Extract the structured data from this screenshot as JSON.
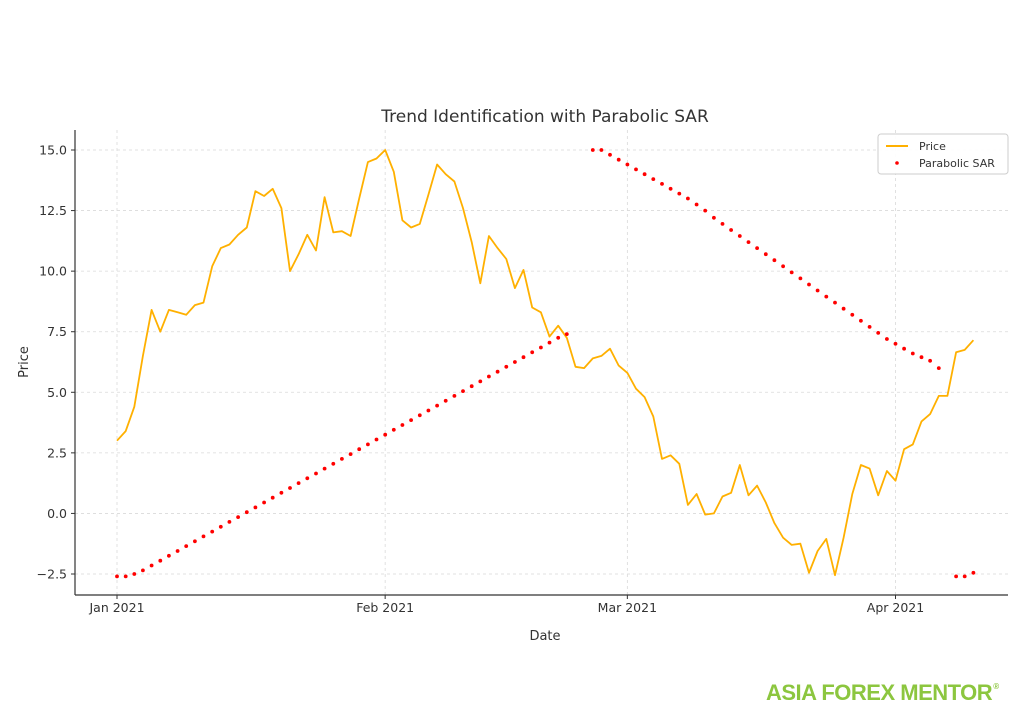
{
  "chart_data": {
    "type": "line",
    "title": "Trend Identification with Parabolic SAR",
    "xlabel": "Date",
    "ylabel": "Price",
    "ylim": [
      -3.4,
      15.8
    ],
    "grid": true,
    "legend_position": "upper right",
    "x_ticks": [
      "Jan 2021",
      "Feb 2021",
      "Mar 2021",
      "Apr 2021"
    ],
    "y_ticks": [
      "−2.5",
      "0.0",
      "2.5",
      "5.0",
      "7.5",
      "10.0",
      "12.5",
      "15.0"
    ],
    "y_tick_values": [
      -2.5,
      0,
      2.5,
      5,
      7.5,
      10,
      12.5,
      15
    ],
    "x_start": "2021-01-01",
    "x_step": "1 day",
    "series": [
      {
        "name": "Price",
        "style": "line",
        "color": "#ffb000",
        "values": [
          3.0,
          3.4,
          4.4,
          6.5,
          8.4,
          7.5,
          8.4,
          8.3,
          8.2,
          8.6,
          8.7,
          10.2,
          10.95,
          11.1,
          11.5,
          11.8,
          13.3,
          13.1,
          13.4,
          12.6,
          10.0,
          10.7,
          11.5,
          10.85,
          13.05,
          11.6,
          11.65,
          11.45,
          13.0,
          14.5,
          14.65,
          15.0,
          14.1,
          12.1,
          11.8,
          11.95,
          13.15,
          14.4,
          14.0,
          13.7,
          12.6,
          11.2,
          9.5,
          11.45,
          10.95,
          10.5,
          9.3,
          10.05,
          8.5,
          8.3,
          7.3,
          7.75,
          7.25,
          6.05,
          6.0,
          6.4,
          6.5,
          6.8,
          6.1,
          5.8,
          5.15,
          4.8,
          4.0,
          2.25,
          2.4,
          2.05,
          0.35,
          0.8,
          -0.05,
          0.0,
          0.7,
          0.85,
          2.0,
          0.75,
          1.15,
          0.45,
          -0.4,
          -1.0,
          -1.3,
          -1.25,
          -2.45,
          -1.55,
          -1.05,
          -2.55,
          -1.0,
          0.8,
          2.0,
          1.85,
          0.75,
          1.75,
          1.35,
          2.65,
          2.85,
          3.8,
          4.1,
          4.85,
          4.85,
          6.65,
          6.75,
          7.15
        ]
      },
      {
        "name": "Parabolic SAR",
        "style": "dots",
        "color": "#ff0000",
        "values": [
          -2.6,
          -2.6,
          -2.5,
          -2.35,
          -2.15,
          -1.95,
          -1.75,
          -1.55,
          -1.35,
          -1.15,
          -0.95,
          -0.75,
          -0.55,
          -0.35,
          -0.15,
          0.05,
          0.25,
          0.45,
          0.65,
          0.85,
          1.05,
          1.25,
          1.45,
          1.65,
          1.85,
          2.05,
          2.25,
          2.45,
          2.65,
          2.85,
          3.05,
          3.25,
          3.45,
          3.65,
          3.85,
          4.05,
          4.25,
          4.45,
          4.65,
          4.85,
          5.05,
          5.25,
          5.45,
          5.65,
          5.85,
          6.05,
          6.25,
          6.45,
          6.65,
          6.85,
          7.05,
          7.25,
          7.4,
          null,
          null,
          15.0,
          15.0,
          14.8,
          14.6,
          14.4,
          14.2,
          14.0,
          13.8,
          13.6,
          13.4,
          13.2,
          13.0,
          12.75,
          12.5,
          12.2,
          11.95,
          11.7,
          11.45,
          11.2,
          10.95,
          10.7,
          10.45,
          10.2,
          9.95,
          9.7,
          9.45,
          9.2,
          8.95,
          8.7,
          8.45,
          8.2,
          7.95,
          7.7,
          7.45,
          7.2,
          7.0,
          6.8,
          6.6,
          6.45,
          6.3,
          6.0,
          null,
          -2.6,
          -2.6,
          -2.45
        ]
      }
    ]
  },
  "legend": {
    "items": [
      {
        "label": "Price",
        "color": "#ffb000"
      },
      {
        "label": "Parabolic SAR",
        "color": "#ff0000"
      }
    ]
  },
  "brand": {
    "logo_text": "ASIA FOREX MENTOR",
    "registered_mark": "®",
    "color": "#8cc63f"
  }
}
